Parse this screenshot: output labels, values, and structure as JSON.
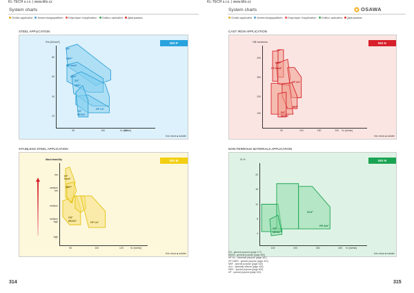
{
  "header": {
    "left_company": "KL-TECH s.r.o. | www.klto.cz",
    "right_company": "KL-TECH s.r.o. | www.klto.cz",
    "left_title": "System charts",
    "right_title": "System charts",
    "brand": "OSAWA"
  },
  "legend": [
    {
      "label": "Grafici applicativi",
      "color": "#e7a91b"
    },
    {
      "label": "Anwendungsgrafiken",
      "color": "#4a9fd8"
    },
    {
      "label": "Graphique d'application",
      "color": "#e74c4c"
    },
    {
      "label": "Gráfico aplicativo",
      "color": "#3aab55"
    },
    {
      "label": "Диаграммы",
      "color": "#d9342b"
    }
  ],
  "panels": {
    "steel": {
      "title": "STEEL APPLICATION",
      "tag": "ISO P",
      "tag_color": "#29a3dd",
      "bg": "#dcf1fb",
      "stroke": "#2e9fd6",
      "fill": "#7fcdef",
      "ylabel": "Rm [N/mm²]",
      "yticks": [
        "80",
        "60",
        "40",
        "20"
      ],
      "xticks": [
        "50",
        "100",
        "150"
      ],
      "xunit": "Vc [m/min]",
      "key": "first choice  ■ suitable",
      "labels": [
        "UP²",
        "MEF²",
        "HP Hard²",
        "MEF²",
        "SO²",
        "MEF²",
        "GS²",
        "MDSA²",
        "HP 1/s²"
      ]
    },
    "cast": {
      "title": "CAST IRON APPLICATION",
      "tag": "ISO K",
      "tag_color": "#d6202a",
      "bg": "#fbe5e2",
      "stroke": "#d6202a",
      "fill": "#f1a090",
      "ylabel": "HB hardness",
      "yticks": [
        "400",
        "300",
        "200",
        "100"
      ],
      "xticks": [
        "50",
        "100",
        "150",
        "200"
      ],
      "xunit": "Vc [m/min]",
      "key": "first choice  ■ suitable",
      "labels": [
        "UP²",
        "MEF²",
        "HP Hard²",
        "HP 1/s²",
        "MEF²",
        "SO²",
        "MDSA²"
      ]
    },
    "stainless": {
      "title": "STAINLESS STEEL APPLICATION",
      "tag": "ISO M",
      "tag_color": "#f2cf10",
      "bg": "#fdf7db",
      "stroke": "#e2c20b",
      "fill": "#f7e07a",
      "ylabel": "Machinability",
      "yticks": [
        "low",
        "medium low",
        "medium",
        "medium high",
        "high"
      ],
      "xticks": [
        "50",
        "100",
        "120"
      ],
      "xunit": "Vc [m/min]",
      "key": "first choice  ■ suitable",
      "labels": [
        "HP Hard²",
        "MEF²",
        "GS²",
        "MDSA²",
        "HP 1/s²"
      ]
    },
    "nonferrous": {
      "title": "NON-FERROUS MATERIALS APPLICATION",
      "tag": "ISO N",
      "tag_color": "#1aa352",
      "bg": "#def3e5",
      "stroke": "#1aa352",
      "fill": "#8bd9a5",
      "ylabel": "Si %",
      "yticks": [
        "20",
        "16",
        "12",
        "8",
        "4"
      ],
      "xticks": [
        "100",
        "200",
        "300",
        "400"
      ],
      "xunit": "Vc [m/min]",
      "key": "first choice  ■ suitable",
      "labels": [
        "ALU²",
        "HP-Alu²",
        "GS²",
        "MDSA²"
      ]
    }
  },
  "notes": [
    "GS - general purpose (page 177)",
    "MDSA - general purpose (page 380)",
    "HP 1/s - universal purpose (page 387)",
    "HP HARD - special purpose (page 410)",
    "MEF - special purpose (page 430)",
    "ALU - specialty intense (page 493)",
    "MEG - special purpose (page 502)",
    "UP - special purpose (page 513)"
  ],
  "page_numbers": {
    "left": "314",
    "right": "315"
  }
}
